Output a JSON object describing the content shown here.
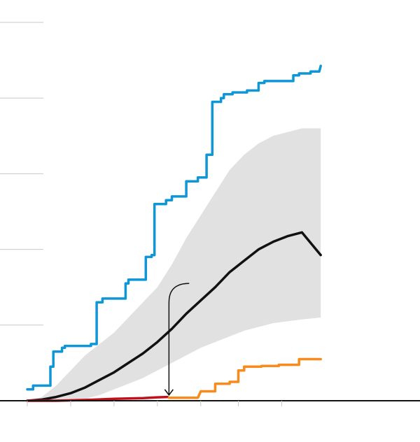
{
  "chart_data": {
    "type": "line",
    "title": "",
    "xlabel": "",
    "ylabel": "",
    "xlim": [
      0,
      100
    ],
    "ylim": [
      0,
      100
    ],
    "grid": true,
    "legend": "none",
    "y_gridlines": [
      20,
      40,
      60,
      80,
      100
    ],
    "x_ticks": [
      0,
      15,
      30,
      45,
      60,
      73,
      88
    ],
    "band": {
      "x": [
        0,
        5,
        10,
        15,
        20,
        25,
        30,
        35,
        40,
        45,
        50,
        55,
        60,
        65,
        70,
        75,
        80,
        85,
        90,
        95,
        101.5
      ],
      "upper": [
        0,
        1,
        4,
        8,
        12,
        15,
        18,
        22,
        26,
        30,
        36,
        43,
        49,
        55,
        61,
        65,
        68,
        70,
        71,
        72,
        72
      ],
      "lower": [
        0,
        0,
        0,
        0,
        0.5,
        1.5,
        3,
        4.5,
        6,
        8,
        10,
        12,
        14,
        15.5,
        17,
        18.5,
        19.5,
        20.5,
        21,
        21.5,
        22
      ]
    },
    "series": [
      {
        "color": "#0f96d6",
        "x": [
          0,
          2,
          2,
          8,
          8,
          9,
          9,
          12,
          12,
          13,
          13,
          22,
          22,
          24,
          24,
          26,
          26,
          34,
          34,
          35,
          35,
          41,
          41,
          43,
          43,
          44,
          44,
          48,
          48,
          50,
          50,
          55,
          55,
          59,
          59,
          62,
          62,
          64,
          64,
          67,
          67,
          68,
          68,
          71,
          71,
          76,
          76,
          80,
          80,
          82,
          82,
          92,
          92,
          94,
          94,
          98,
          98,
          101,
          101.5
        ],
        "y": [
          3,
          3,
          4,
          4,
          9,
          9,
          13,
          13,
          14,
          14,
          14.5,
          14.5,
          15,
          15,
          26,
          26,
          27,
          27,
          31,
          31,
          32,
          32,
          38,
          38,
          38.5,
          38.5,
          52,
          52,
          53,
          53,
          54,
          54,
          58,
          58,
          59,
          59,
          65,
          65,
          79,
          79,
          80,
          80,
          81,
          81,
          81.5,
          81.5,
          82,
          82,
          84,
          84,
          84.5,
          84.5,
          86,
          86,
          86.5,
          86.5,
          87,
          87,
          88.5
        ]
      },
      {
        "color": "#111111",
        "x": [
          0,
          5,
          10,
          15,
          20,
          25,
          30,
          35,
          40,
          45,
          50,
          55,
          60,
          65,
          70,
          75,
          80,
          85,
          90,
          95,
          101.5
        ],
        "y": [
          0,
          0.3,
          1,
          2,
          3.5,
          5.5,
          7.5,
          10,
          12.5,
          15.5,
          19,
          23,
          26.5,
          30,
          34,
          37,
          40,
          42,
          43.5,
          44.5,
          38.5
        ]
      },
      {
        "color": "#c0111a",
        "x": [
          0,
          10,
          20,
          30,
          40,
          45,
          48.5
        ],
        "y": [
          0,
          0,
          0.2,
          0.5,
          0.7,
          0.9,
          1
        ]
      },
      {
        "color": "#f98b1d",
        "x": [
          49,
          55,
          59,
          60,
          62,
          65,
          65,
          70,
          70,
          73,
          73,
          75,
          75,
          81,
          81,
          87,
          87,
          92,
          92,
          94,
          94,
          96,
          96,
          101.5
        ],
        "y": [
          0.8,
          0.8,
          0.8,
          2.5,
          2.5,
          2.5,
          4.5,
          4.5,
          5,
          5,
          8,
          8,
          9,
          9,
          9.2,
          9.2,
          9.5,
          9.5,
          9.5,
          9.5,
          11,
          11,
          11,
          11
        ]
      }
    ],
    "annotation": {
      "arrow_from": [
        56,
        31
      ],
      "arrow_to": [
        49,
        1.5
      ]
    }
  }
}
